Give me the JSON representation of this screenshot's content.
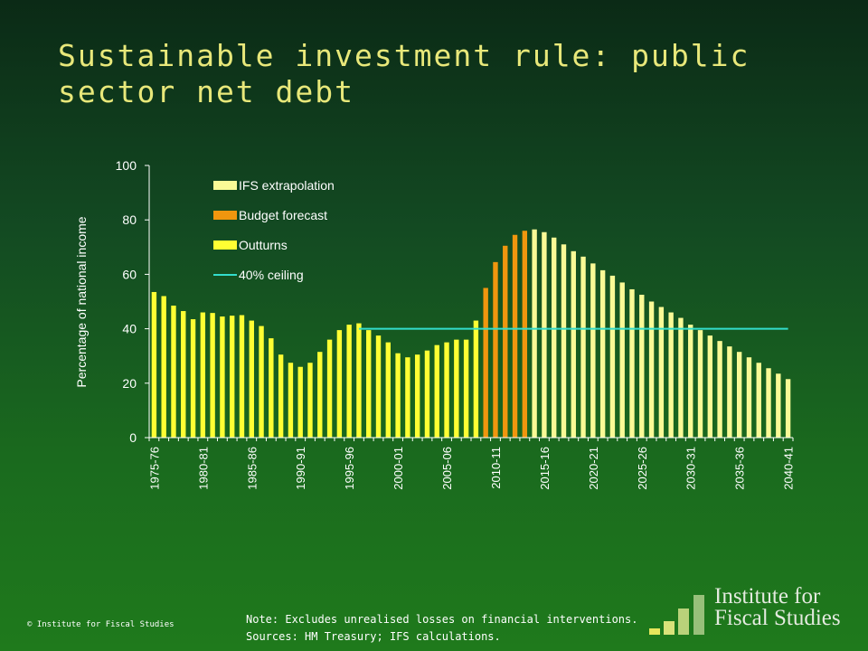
{
  "slide": {
    "title": "Sustainable investment rule: public sector net debt",
    "copyright": "© Institute for Fiscal Studies",
    "note": "Note: Excludes unrealised losses on financial interventions.",
    "sources": "Sources: HM Treasury; IFS calculations.",
    "logo": {
      "line1": "Institute for",
      "line2": "Fiscal Studies"
    }
  },
  "colors": {
    "outturn": "#ffff33",
    "forecast": "#f0960e",
    "extrapolation": "#fafa96",
    "ceiling": "#33ddcc",
    "axis": "#ffffff"
  },
  "chart_data": {
    "type": "bar",
    "title": "",
    "ylabel": "Percentage of national income",
    "xlabel": "",
    "ylim": [
      0,
      100
    ],
    "yticks": [
      0,
      20,
      40,
      60,
      80,
      100
    ],
    "grid": false,
    "legend_position": "top-left",
    "categories": [
      "1975-76",
      "1976-77",
      "1977-78",
      "1978-79",
      "1979-80",
      "1980-81",
      "1981-82",
      "1982-83",
      "1983-84",
      "1984-85",
      "1985-86",
      "1986-87",
      "1987-88",
      "1988-89",
      "1989-90",
      "1990-91",
      "1991-92",
      "1992-93",
      "1993-94",
      "1994-95",
      "1995-96",
      "1996-97",
      "1997-98",
      "1998-99",
      "1999-00",
      "2000-01",
      "2001-02",
      "2002-03",
      "2003-04",
      "2004-05",
      "2005-06",
      "2006-07",
      "2007-08",
      "2008-09",
      "2009-10",
      "2010-11",
      "2011-12",
      "2012-13",
      "2013-14",
      "2014-15",
      "2015-16",
      "2016-17",
      "2017-18",
      "2018-19",
      "2019-20",
      "2020-21",
      "2021-22",
      "2022-23",
      "2023-24",
      "2024-25",
      "2025-26",
      "2026-27",
      "2027-28",
      "2028-29",
      "2029-30",
      "2030-31",
      "2031-32",
      "2032-33",
      "2033-34",
      "2034-35",
      "2035-36",
      "2036-37",
      "2037-38",
      "2038-39",
      "2039-40",
      "2040-41"
    ],
    "xtick_labels": [
      "1975-76",
      "1980-81",
      "1985-86",
      "1990-91",
      "1995-96",
      "2000-01",
      "2005-06",
      "2010-11",
      "2015-16",
      "2020-21",
      "2025-26",
      "2030-31",
      "2035-36",
      "2040-41"
    ],
    "series": [
      {
        "name": "IFS extrapolation",
        "from": "2014-15",
        "to": "2040-41"
      },
      {
        "name": "Budget forecast",
        "from": "2009-10",
        "to": "2013-14"
      },
      {
        "name": "Outturns",
        "from": "1975-76",
        "to": "2008-09"
      }
    ],
    "values": [
      53.5,
      52.0,
      48.5,
      46.5,
      43.5,
      46.0,
      45.8,
      44.5,
      44.8,
      45.0,
      43.0,
      41.0,
      36.5,
      30.5,
      27.5,
      26.0,
      27.5,
      31.5,
      36.0,
      39.5,
      41.5,
      42.0,
      39.5,
      37.5,
      35.0,
      31.0,
      29.5,
      30.5,
      32.0,
      34.0,
      35.0,
      36.0,
      36.0,
      43.0,
      55.0,
      64.5,
      70.5,
      74.5,
      76.0,
      76.5,
      75.5,
      73.5,
      71.0,
      68.5,
      66.5,
      64.0,
      61.5,
      59.5,
      57.0,
      54.5,
      52.5,
      50.0,
      48.0,
      46.0,
      44.0,
      41.5,
      39.5,
      37.5,
      35.5,
      33.5,
      31.5,
      29.5,
      27.5,
      25.5,
      23.5,
      21.5
    ],
    "ceiling": {
      "name": "40% ceiling",
      "value": 40,
      "from": "1996-97",
      "to": "2040-41"
    }
  }
}
